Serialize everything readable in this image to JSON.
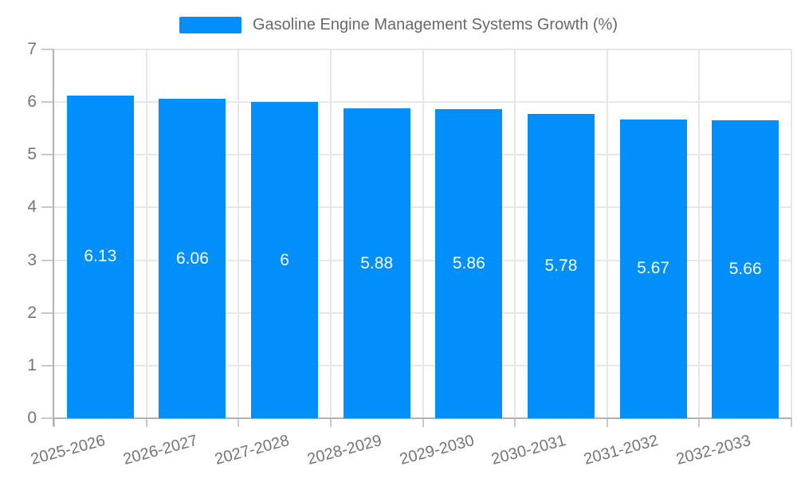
{
  "legend": {
    "label": "Gasoline Engine Management Systems Growth (%)"
  },
  "colors": {
    "bar": "#008FFB",
    "grid": "#e7e7e7",
    "axis_line": "#b3b3b3",
    "tick_line": "#c9c9c9",
    "axis_text": "#757575",
    "legend_text": "#66696b",
    "value_label_text": "#ffffff",
    "background": "#ffffff"
  },
  "chart_data": {
    "type": "bar",
    "title": "Gasoline Engine Management Systems Growth (%)",
    "categories": [
      "2025-2026",
      "2026-2027",
      "2027-2028",
      "2028-2029",
      "2029-2030",
      "2030-2031",
      "2031-2032",
      "2032-2033"
    ],
    "values": [
      6.13,
      6.06,
      6,
      5.88,
      5.86,
      5.78,
      5.67,
      5.66
    ],
    "value_labels": [
      "6.13",
      "6.06",
      "6",
      "5.88",
      "5.86",
      "5.78",
      "5.67",
      "5.66"
    ],
    "xlabel": "",
    "ylabel": "",
    "ylim": [
      0,
      7
    ],
    "ytick_step": 1,
    "yticks": [
      "0",
      "1",
      "2",
      "3",
      "4",
      "5",
      "6",
      "7"
    ],
    "grid": "on",
    "legend_position": "top",
    "x_label_rotation_deg": -15
  }
}
